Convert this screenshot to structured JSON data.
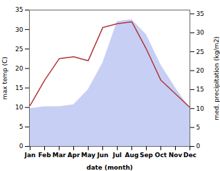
{
  "chart_data": {
    "type": "line",
    "categories": [
      "Jan",
      "Feb",
      "Mar",
      "Apr",
      "May",
      "Jun",
      "Jul",
      "Aug",
      "Sep",
      "Oct",
      "Nov",
      "Dec"
    ],
    "series": [
      {
        "type": "line",
        "color": "#b03535",
        "values": [
          10.5,
          17.0,
          22.5,
          23.0,
          22.0,
          30.5,
          31.5,
          32.0,
          25.0,
          17.0,
          13.5,
          10.0
        ]
      },
      {
        "type": "area",
        "color": "#c8cff5",
        "axis": "y2",
        "values": [
          10.0,
          10.5,
          10.5,
          11.0,
          15.0,
          22.0,
          33.0,
          33.5,
          29.5,
          21.5,
          15.5,
          10.0
        ]
      }
    ],
    "xlabel": "date (month)",
    "ylabel": "max temp (C)",
    "y2label": "med. precipitation (kg/m2)",
    "ylim": [
      0,
      35
    ],
    "yticks": [
      0,
      5,
      10,
      15,
      20,
      25,
      30,
      35
    ],
    "y2lim": [
      0,
      36
    ],
    "y2ticks": [
      0,
      5,
      10,
      15,
      20,
      25,
      30,
      35
    ]
  }
}
